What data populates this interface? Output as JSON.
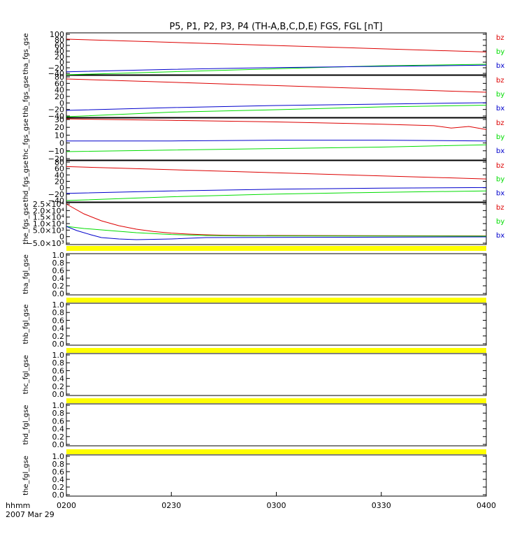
{
  "chart_data": {
    "type": "line",
    "title": "P5, P1, P2, P3, P4 (TH-A,B,C,D,E) FGS, FGL [nT]",
    "time_axis": {
      "range": [
        "0200",
        "0400"
      ],
      "ticks": [
        "0200",
        "0230",
        "0300",
        "0330",
        "0400"
      ],
      "label_line1": "hhmm",
      "label_line2": "2007 Mar 29"
    },
    "colors": {
      "bz": "#dd0000",
      "by": "#00dd00",
      "bx": "#0000cc",
      "nodata_band": "#ffff00"
    },
    "panels": [
      {
        "ylabel": "tha_fgs_gse",
        "yticks": [
          "100",
          "80",
          "60",
          "40",
          "20",
          "0",
          "−20",
          "−40"
        ],
        "ylim": [
          -40,
          100
        ],
        "legend": [
          "bz",
          "by",
          "bx"
        ],
        "series": [
          {
            "name": "bz",
            "x": [
              0,
              120
            ],
            "y": [
              79,
              36
            ]
          },
          {
            "name": "by",
            "x": [
              0,
              30,
              60,
              90,
              120
            ],
            "y": [
              -40,
              -30,
              -20,
              -10,
              -5
            ]
          },
          {
            "name": "bx",
            "x": [
              0,
              30,
              60,
              90,
              120
            ],
            "y": [
              -30,
              -22,
              -16,
              -12,
              -8
            ]
          }
        ]
      },
      {
        "ylabel": "thb_fgs_gse",
        "yticks": [
          "80",
          "60",
          "40",
          "20",
          "0",
          "−20",
          "−40"
        ],
        "ylim": [
          -40,
          80
        ],
        "legend": [
          "bz",
          "by",
          "bx"
        ],
        "series": [
          {
            "name": "bz",
            "x": [
              0,
              120
            ],
            "y": [
              70,
              32
            ]
          },
          {
            "name": "by",
            "x": [
              0,
              30,
              60,
              90,
              120
            ],
            "y": [
              -38,
              -25,
              -18,
              -10,
              -5
            ]
          },
          {
            "name": "bx",
            "x": [
              0,
              30,
              60,
              90,
              120
            ],
            "y": [
              -20,
              -12,
              -6,
              -2,
              2
            ]
          }
        ]
      },
      {
        "ylabel": "thc_fgs_gse",
        "yticks": [
          "30",
          "20",
          "10",
          "0",
          "−10",
          "−20"
        ],
        "ylim": [
          -25,
          30
        ],
        "legend": [
          "bz",
          "by",
          "bx"
        ],
        "series": [
          {
            "name": "bz",
            "x": [
              0,
              30,
              60,
              90,
              105,
              110,
              115,
              120
            ],
            "y": [
              29,
              27,
              25,
              22,
              20,
              17,
              19,
              15
            ]
          },
          {
            "name": "by",
            "x": [
              0,
              30,
              60,
              90,
              120
            ],
            "y": [
              -14,
              -12,
              -10,
              -8,
              -5
            ]
          },
          {
            "name": "bx",
            "x": [
              0,
              30,
              60,
              90,
              120
            ],
            "y": [
              0,
              0,
              1,
              1,
              0
            ]
          }
        ]
      },
      {
        "ylabel": "thd_fgs_gse",
        "yticks": [
          "80",
          "60",
          "40",
          "20",
          "0",
          "−20",
          "−40"
        ],
        "ylim": [
          -40,
          80
        ],
        "legend": [
          "bz",
          "by",
          "bx"
        ],
        "series": [
          {
            "name": "bz",
            "x": [
              0,
              120
            ],
            "y": [
              63,
              27
            ]
          },
          {
            "name": "by",
            "x": [
              0,
              30,
              60,
              90,
              120
            ],
            "y": [
              -36,
              -25,
              -17,
              -12,
              -8
            ]
          },
          {
            "name": "bx",
            "x": [
              0,
              30,
              60,
              90,
              120
            ],
            "y": [
              -15,
              -8,
              -3,
              0,
              2
            ]
          }
        ]
      },
      {
        "ylabel": "the_fgs_gse",
        "yticks": [
          "2.5×10⁴",
          "2.0×10⁴",
          "1.5×10⁴",
          "1.0×10⁴",
          "5.0×10³",
          "0",
          "−5.0×10³"
        ],
        "ylim": [
          -5000,
          25000
        ],
        "legend": [
          "bz",
          "by",
          "bx"
        ],
        "series": [
          {
            "name": "bz",
            "x": [
              0,
              5,
              10,
              15,
              20,
              25,
              30,
              35,
              40,
              45,
              50,
              120
            ],
            "y": [
              24000,
              17000,
              12000,
              8500,
              6000,
              4300,
              3200,
              2500,
              2000,
              1700,
              1500,
              1200
            ]
          },
          {
            "name": "by",
            "x": [
              0,
              5,
              10,
              15,
              20,
              30,
              40,
              50,
              120
            ],
            "y": [
              8000,
              6500,
              5500,
              4500,
              3500,
              2200,
              1500,
              1200,
              1000
            ]
          },
          {
            "name": "bx",
            "x": [
              0,
              3,
              7,
              10,
              15,
              20,
              30,
              40,
              120
            ],
            "y": [
              8000,
              5000,
              2000,
              0,
              -1000,
              -1500,
              -1000,
              0,
              500
            ]
          }
        ]
      },
      {
        "ylabel": "tha_fgl_gse",
        "yticks": [
          "1.0",
          "0.8",
          "0.6",
          "0.4",
          "0.2",
          "0.0"
        ],
        "ylim": [
          0,
          1
        ],
        "nodata": true
      },
      {
        "ylabel": "thb_fgl_gse",
        "yticks": [
          "1.0",
          "0.8",
          "0.6",
          "0.4",
          "0.2",
          "0.0"
        ],
        "ylim": [
          0,
          1
        ],
        "nodata": true
      },
      {
        "ylabel": "thc_fgl_gse",
        "yticks": [
          "1.0",
          "0.8",
          "0.6",
          "0.4",
          "0.2",
          "0.0"
        ],
        "ylim": [
          0,
          1
        ],
        "nodata": true
      },
      {
        "ylabel": "thd_fgl_gse",
        "yticks": [
          "1.0",
          "0.8",
          "0.6",
          "0.4",
          "0.2",
          "0.0"
        ],
        "ylim": [
          0,
          1
        ],
        "nodata": true
      },
      {
        "ylabel": "the_fgl_gse",
        "yticks": [
          "1.0",
          "0.8",
          "0.6",
          "0.4",
          "0.2",
          "0.0"
        ],
        "ylim": [
          0,
          1
        ],
        "nodata": true
      }
    ]
  }
}
